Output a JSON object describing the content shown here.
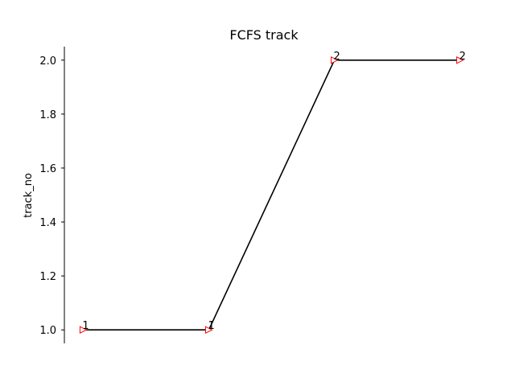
{
  "chart_data": {
    "type": "line",
    "title": "FCFS track",
    "xlabel": "",
    "ylabel": "track_no",
    "x": [
      1,
      2,
      3,
      4
    ],
    "series": [
      {
        "values": [
          1,
          1,
          2,
          2
        ],
        "point_labels": [
          "1",
          "1",
          "2",
          "2"
        ]
      }
    ],
    "ylim": [
      0.95,
      2.05
    ],
    "yticks": [
      1.0,
      1.2,
      1.4,
      1.6,
      1.8,
      2.0
    ],
    "ytick_labels": [
      "1.0",
      "1.2",
      "1.4",
      "1.6",
      "1.8",
      "2.0"
    ],
    "x_axis_visible": false,
    "grid": false,
    "line_color": "#000000",
    "marker": "triangle-right",
    "marker_color": "#ff0000"
  }
}
